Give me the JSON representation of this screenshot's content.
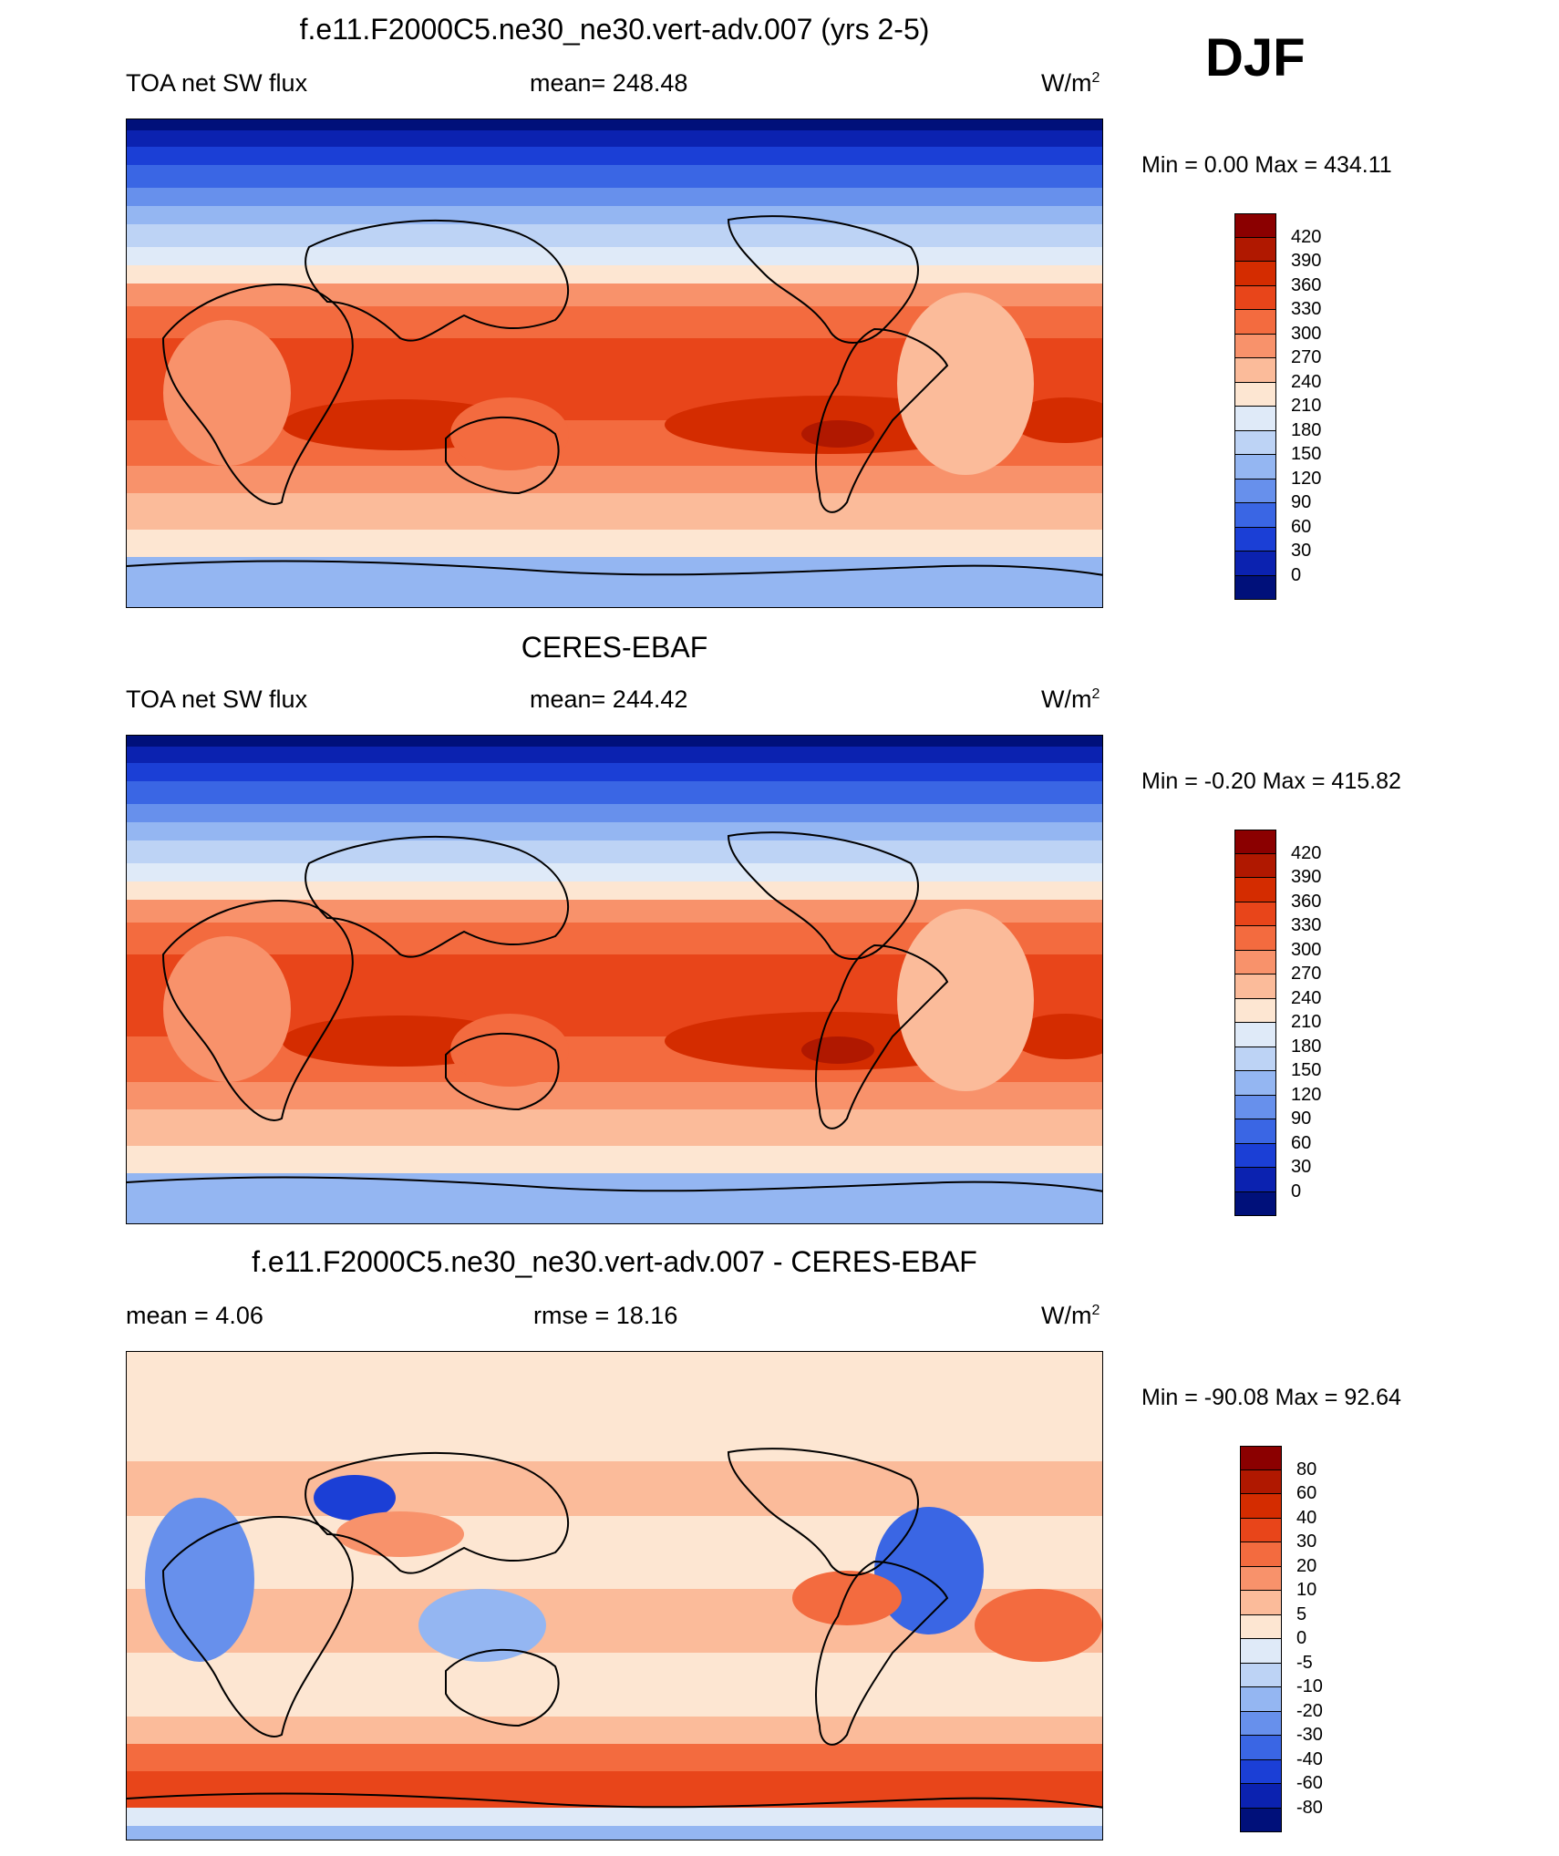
{
  "season": "DJF",
  "units_label": "W/m",
  "units_sup": "2",
  "panels": [
    {
      "title": "f.e11.F2000C5.ne30_ne30.vert-adv.007 (yrs 2-5)",
      "left_label": "TOA net SW flux",
      "center_label": "mean= 248.48",
      "minmax": "Min =   0.00 Max = 434.11",
      "kind": "abs"
    },
    {
      "title": "CERES-EBAF",
      "left_label": "TOA net SW flux",
      "center_label": "mean= 244.42",
      "minmax": "Min =  -0.20 Max = 415.82",
      "kind": "abs"
    },
    {
      "title": "f.e11.F2000C5.ne30_ne30.vert-adv.007 - CERES-EBAF",
      "left_label": "mean =   4.06",
      "center_label": "rmse =  18.16",
      "minmax": "Min = -90.08 Max =  92.64",
      "kind": "diff"
    }
  ],
  "colorbar_abs": {
    "labels": [
      "420",
      "390",
      "360",
      "330",
      "300",
      "270",
      "240",
      "210",
      "180",
      "150",
      "120",
      "90",
      "60",
      "30",
      "0"
    ],
    "colors": [
      "#8b0000",
      "#b01800",
      "#d42c00",
      "#e8451a",
      "#f36b3f",
      "#f8926b",
      "#fbbb9a",
      "#fde6d2",
      "#dfeaf8",
      "#bdd3f5",
      "#94b6f2",
      "#6790ec",
      "#3a66e4",
      "#1b3fd6",
      "#0b22b0",
      "#00107a"
    ]
  },
  "colorbar_diff": {
    "labels": [
      "80",
      "60",
      "40",
      "30",
      "20",
      "10",
      "5",
      "0",
      "-5",
      "-10",
      "-20",
      "-30",
      "-40",
      "-60",
      "-80"
    ],
    "colors": [
      "#8b0000",
      "#b01800",
      "#d42c00",
      "#e8451a",
      "#f36b3f",
      "#f8926b",
      "#fbbb9a",
      "#fde6d2",
      "#dfeaf8",
      "#bdd3f5",
      "#94b6f2",
      "#6790ec",
      "#3a66e4",
      "#1b3fd6",
      "#0b22b0",
      "#00107a"
    ]
  }
}
